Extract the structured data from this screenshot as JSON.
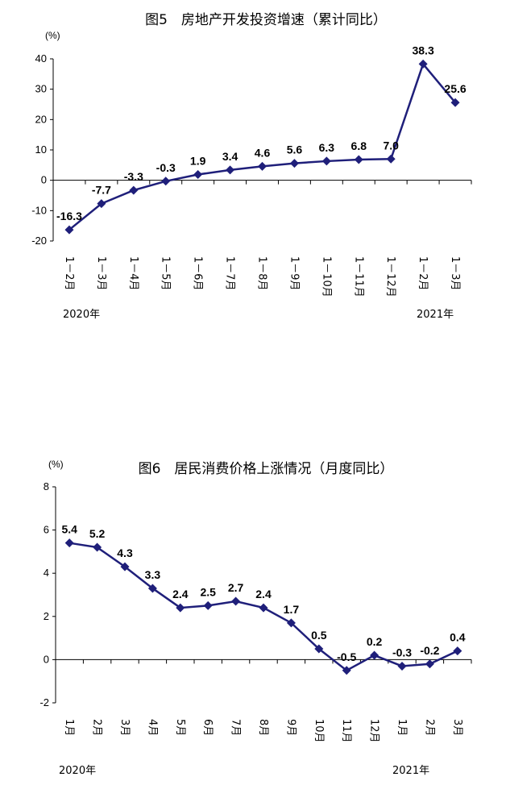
{
  "chart_data": [
    {
      "type": "line",
      "title": "图5　房地产开发投资增速（累计同比）",
      "unit": "(%)",
      "categories": [
        "1－2月",
        "1－3月",
        "1－4月",
        "1－5月",
        "1－6月",
        "1－7月",
        "1－8月",
        "1－9月",
        "1－10月",
        "1－11月",
        "1－12月",
        "1－2月",
        "1－3月"
      ],
      "values": [
        -16.3,
        -7.7,
        -3.3,
        -0.3,
        1.9,
        3.4,
        4.6,
        5.6,
        6.3,
        6.8,
        7.0,
        38.3,
        25.6
      ],
      "data_labels": [
        "-16.3",
        "-7.7",
        "-3.3",
        "-0.3",
        "1.9",
        "3.4",
        "4.6",
        "5.6",
        "6.3",
        "6.8",
        "7.0",
        "38.3",
        "25.6"
      ],
      "yticks": [
        "40",
        "30",
        "20",
        "10",
        "0",
        "-10",
        "-20"
      ],
      "ylim": [
        -20,
        40
      ],
      "year_labels": [
        "2020年",
        "2021年"
      ],
      "color": "#1f1f7a",
      "marker": "diamond"
    },
    {
      "type": "line",
      "title": "图6　居民消费价格上涨情况（月度同比）",
      "unit": "(%)",
      "categories": [
        "1月",
        "2月",
        "3月",
        "4月",
        "5月",
        "6月",
        "7月",
        "8月",
        "9月",
        "10月",
        "11月",
        "12月",
        "1月",
        "2月",
        "3月"
      ],
      "values": [
        5.4,
        5.2,
        4.3,
        3.3,
        2.4,
        2.5,
        2.7,
        2.4,
        1.7,
        0.5,
        -0.5,
        0.2,
        -0.3,
        -0.2,
        0.4
      ],
      "data_labels": [
        "5.4",
        "5.2",
        "4.3",
        "3.3",
        "2.4",
        "2.5",
        "2.7",
        "2.4",
        "1.7",
        "0.5",
        "-0.5",
        "0.2",
        "-0.3",
        "-0.2",
        "0.4"
      ],
      "yticks": [
        "8",
        "6",
        "4",
        "2",
        "0",
        "-2"
      ],
      "ylim": [
        -2,
        8
      ],
      "year_labels": [
        "2020年",
        "2021年"
      ],
      "color": "#1f1f7a",
      "marker": "diamond"
    }
  ]
}
